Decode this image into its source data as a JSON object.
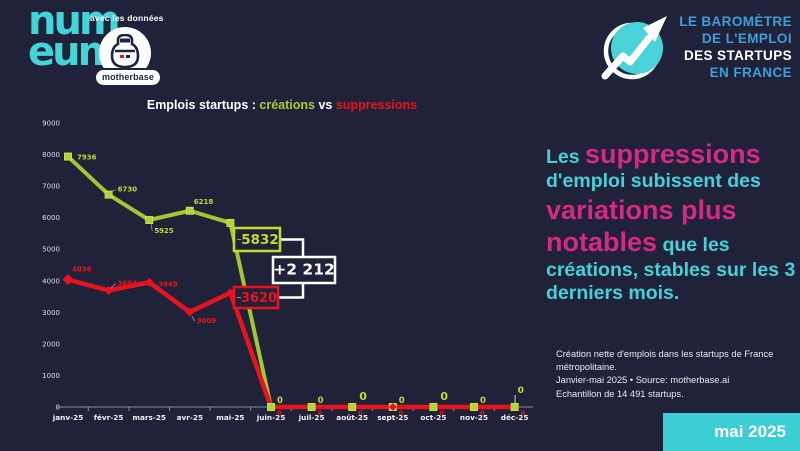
{
  "colors": {
    "background": "#202239",
    "cyan": "#45d1d9",
    "magenta": "#d62a80",
    "green": "#9fc832",
    "green_label": "#c3dc27",
    "red": "#e8131d",
    "blue": "#3f9ed9",
    "badge_bg": "#3bced4"
  },
  "header": {
    "numeum_logo": {
      "line1": "num",
      "line2": "eum"
    },
    "with_data_label": "avec les données",
    "motherbase_label": "motherbase",
    "barometer_title": {
      "lines": [
        {
          "text": "LE BAROMÈTRE",
          "color": "#3f9ed9"
        },
        {
          "text": "DE L'EMPLOI",
          "color": "#3f9ed9"
        },
        {
          "text": "DES STARTUPS",
          "color": "#ffffff"
        },
        {
          "text": "EN FRANCE",
          "color": "#3f9ed9"
        }
      ]
    }
  },
  "chart_data": {
    "type": "line",
    "title": "Emplois startups : créations vs suppressions",
    "title_parts": [
      {
        "text": "Emplois startups : ",
        "color": "#ffffff"
      },
      {
        "text": "créations",
        "color": "#a8ce38"
      },
      {
        "text": " vs ",
        "color": "#ffffff"
      },
      {
        "text": "suppressions",
        "color": "#e8131d"
      }
    ],
    "categories": [
      "janv-25",
      "févr-25",
      "mars-25",
      "avr-25",
      "mai-25",
      "juin-25",
      "juil-25",
      "août-25",
      "sept-25",
      "oct-25",
      "nov-25",
      "déc-25"
    ],
    "series": [
      {
        "name": "créations",
        "color": "#9fc832",
        "label_color": "#c3dc27",
        "marker": "square",
        "values": [
          7936,
          6730,
          5925,
          6218,
          5832,
          0,
          0,
          0,
          0,
          0,
          0,
          0
        ]
      },
      {
        "name": "suppressions",
        "color": "#e8131d",
        "label_color": "#e8131d",
        "marker": "diamond",
        "values": [
          4036,
          3693,
          3949,
          3009,
          3620,
          0,
          0,
          0,
          0,
          0,
          0,
          0
        ]
      }
    ],
    "highlight_month": "mai-25",
    "highlight_values": {
      "creations": "5832",
      "suppressions": "3620"
    },
    "net_label": "+2 212",
    "ylim": [
      0,
      9000
    ],
    "ytick_step": 1000,
    "grid": false,
    "legend_position": "none"
  },
  "insight": {
    "segments": [
      {
        "text": "Les ",
        "size": "s"
      },
      {
        "text": "suppressions",
        "size": "l"
      },
      {
        "text": " d'emploi subissent des ",
        "size": "s"
      },
      {
        "text": "variations plus notables",
        "size": "l"
      },
      {
        "text": " que les créations, stables sur les 3 derniers mois.",
        "size": "s"
      }
    ]
  },
  "footnote": {
    "lines": [
      "Création nette d'emplois dans les startups de France métropolitaine.",
      "Janvier-mai 2025 • Source: motherbase.ai",
      "Echantillon de 14 491 startups."
    ]
  },
  "badge": {
    "label": "mai 2025"
  }
}
